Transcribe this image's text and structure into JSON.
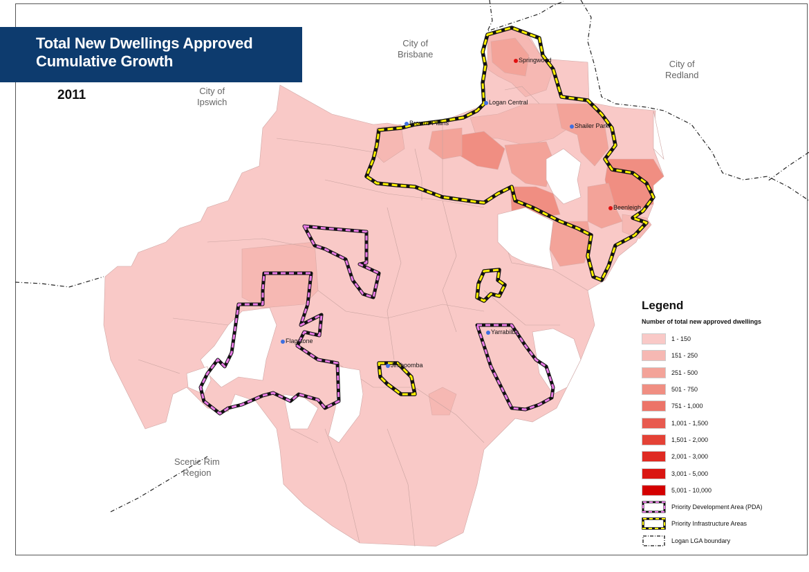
{
  "title": {
    "line1": "Total New Dwellings Approved",
    "line2": "Cumulative Growth"
  },
  "year": "2011",
  "regions": {
    "brisbane": "City of\nBrisbane",
    "redland": "City of\nRedland",
    "ipswich": "City of\nIpswich",
    "scenic_rim": "Scenic Rim\nRegion"
  },
  "places": {
    "springwood": "Springwood",
    "logan_central": "Logan Central",
    "browns_plains": "Browns Plains",
    "shailer_park": "Shailer Park",
    "beenleigh": "Beenleigh",
    "flagstone": "Flagstone",
    "yarrabilba": "Yarrabilba",
    "jimboomba": "Jimboomba"
  },
  "legend": {
    "title": "Legend",
    "subtitle": "Number of total new approved dwellings",
    "classes": [
      {
        "label": "1 - 150",
        "color": "#f9c9c7"
      },
      {
        "label": "151 - 250",
        "color": "#f6b8b3"
      },
      {
        "label": "251 - 500",
        "color": "#f3a399"
      },
      {
        "label": "501 - 750",
        "color": "#f08e82"
      },
      {
        "label": "751 - 1,000",
        "color": "#ec7468"
      },
      {
        "label": "1,001 - 1,500",
        "color": "#e85a4f"
      },
      {
        "label": "1,501 - 2,000",
        "color": "#e44236"
      },
      {
        "label": "2,001 - 3,000",
        "color": "#df2a22"
      },
      {
        "label": "3,001 - 5,000",
        "color": "#da1612"
      },
      {
        "label": "5,001 - 10,000",
        "color": "#d40000"
      }
    ],
    "pda_label": "Priority Development Area (PDA)",
    "pia_label": "Priority Infrastructure Areas",
    "lga_label": "Logan LGA boundary"
  },
  "colors": {
    "title_bg": "#0d3b6e",
    "pda_dash": "#e97be6",
    "pia_dash": "#fff200",
    "blue_dot": "#3f6fe0",
    "red_dot": "#e01010"
  }
}
